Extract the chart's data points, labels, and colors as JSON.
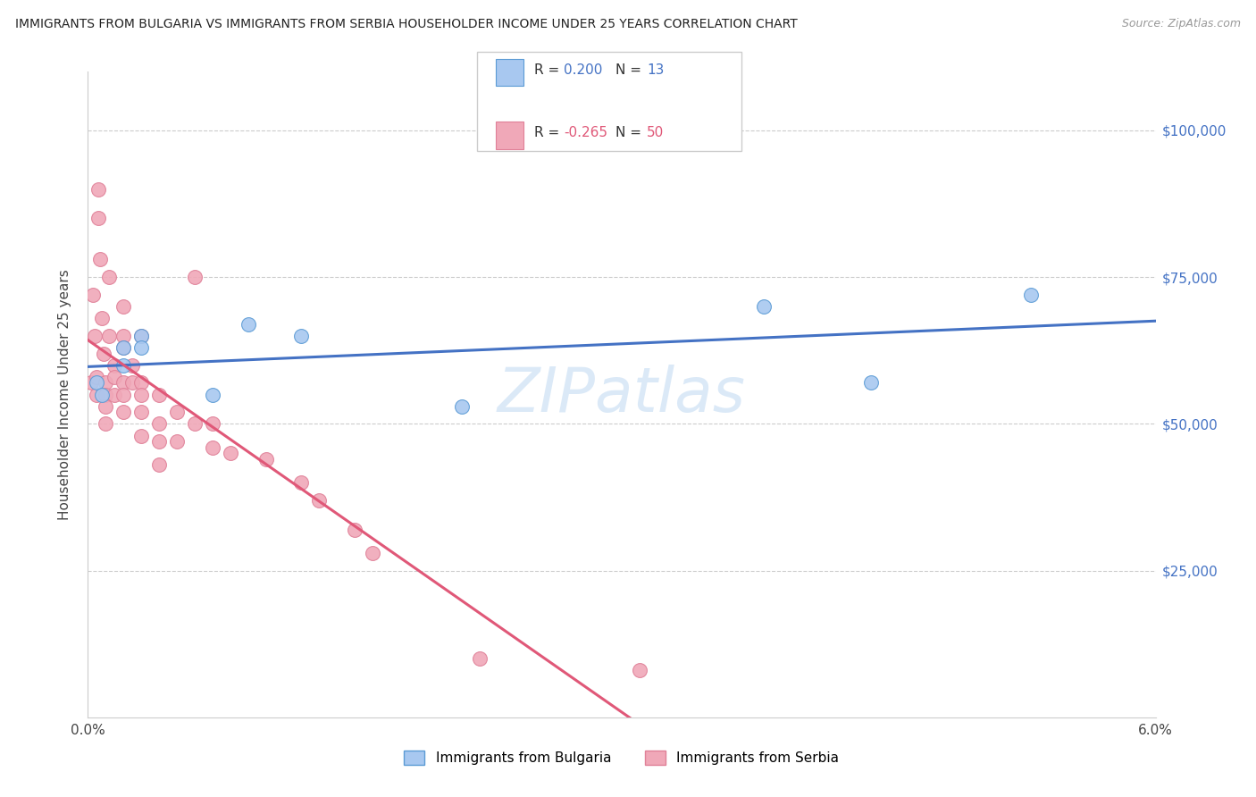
{
  "title": "IMMIGRANTS FROM BULGARIA VS IMMIGRANTS FROM SERBIA HOUSEHOLDER INCOME UNDER 25 YEARS CORRELATION CHART",
  "source": "Source: ZipAtlas.com",
  "ylabel": "Householder Income Under 25 years",
  "xlim": [
    0.0,
    0.06
  ],
  "ylim": [
    0,
    110000
  ],
  "yticks": [
    0,
    25000,
    50000,
    75000,
    100000
  ],
  "ytick_labels": [
    "",
    "$25,000",
    "$50,000",
    "$75,000",
    "$100,000"
  ],
  "xticks": [
    0.0,
    0.01,
    0.02,
    0.03,
    0.04,
    0.05,
    0.06
  ],
  "xtick_labels": [
    "0.0%",
    "",
    "",
    "",
    "",
    "",
    "6.0%"
  ],
  "bulgaria_color": "#a8c8f0",
  "serbia_color": "#f0a8b8",
  "bulgaria_edge_color": "#5b9bd5",
  "serbia_edge_color": "#e08098",
  "bulgaria_line_color": "#4472c4",
  "serbia_line_color": "#e05878",
  "watermark": "ZIPatlas",
  "bulgaria_points": [
    [
      0.0005,
      57000
    ],
    [
      0.0008,
      55000
    ],
    [
      0.002,
      63000
    ],
    [
      0.002,
      60000
    ],
    [
      0.003,
      65000
    ],
    [
      0.003,
      63000
    ],
    [
      0.007,
      55000
    ],
    [
      0.009,
      67000
    ],
    [
      0.012,
      65000
    ],
    [
      0.021,
      53000
    ],
    [
      0.038,
      70000
    ],
    [
      0.044,
      57000
    ],
    [
      0.053,
      72000
    ]
  ],
  "serbia_points": [
    [
      0.0002,
      57000
    ],
    [
      0.0003,
      72000
    ],
    [
      0.0004,
      65000
    ],
    [
      0.0005,
      55000
    ],
    [
      0.0005,
      58000
    ],
    [
      0.0006,
      90000
    ],
    [
      0.0006,
      85000
    ],
    [
      0.0007,
      78000
    ],
    [
      0.0008,
      68000
    ],
    [
      0.0009,
      62000
    ],
    [
      0.001,
      57000
    ],
    [
      0.001,
      55000
    ],
    [
      0.001,
      53000
    ],
    [
      0.001,
      50000
    ],
    [
      0.0012,
      75000
    ],
    [
      0.0012,
      65000
    ],
    [
      0.0015,
      60000
    ],
    [
      0.0015,
      58000
    ],
    [
      0.0015,
      55000
    ],
    [
      0.002,
      70000
    ],
    [
      0.002,
      65000
    ],
    [
      0.002,
      63000
    ],
    [
      0.002,
      57000
    ],
    [
      0.002,
      55000
    ],
    [
      0.002,
      52000
    ],
    [
      0.0025,
      60000
    ],
    [
      0.0025,
      57000
    ],
    [
      0.003,
      65000
    ],
    [
      0.003,
      57000
    ],
    [
      0.003,
      55000
    ],
    [
      0.003,
      52000
    ],
    [
      0.003,
      48000
    ],
    [
      0.004,
      55000
    ],
    [
      0.004,
      50000
    ],
    [
      0.004,
      47000
    ],
    [
      0.004,
      43000
    ],
    [
      0.005,
      52000
    ],
    [
      0.005,
      47000
    ],
    [
      0.006,
      75000
    ],
    [
      0.006,
      50000
    ],
    [
      0.007,
      50000
    ],
    [
      0.007,
      46000
    ],
    [
      0.008,
      45000
    ],
    [
      0.01,
      44000
    ],
    [
      0.012,
      40000
    ],
    [
      0.013,
      37000
    ],
    [
      0.015,
      32000
    ],
    [
      0.016,
      28000
    ],
    [
      0.022,
      10000
    ],
    [
      0.031,
      8000
    ]
  ]
}
